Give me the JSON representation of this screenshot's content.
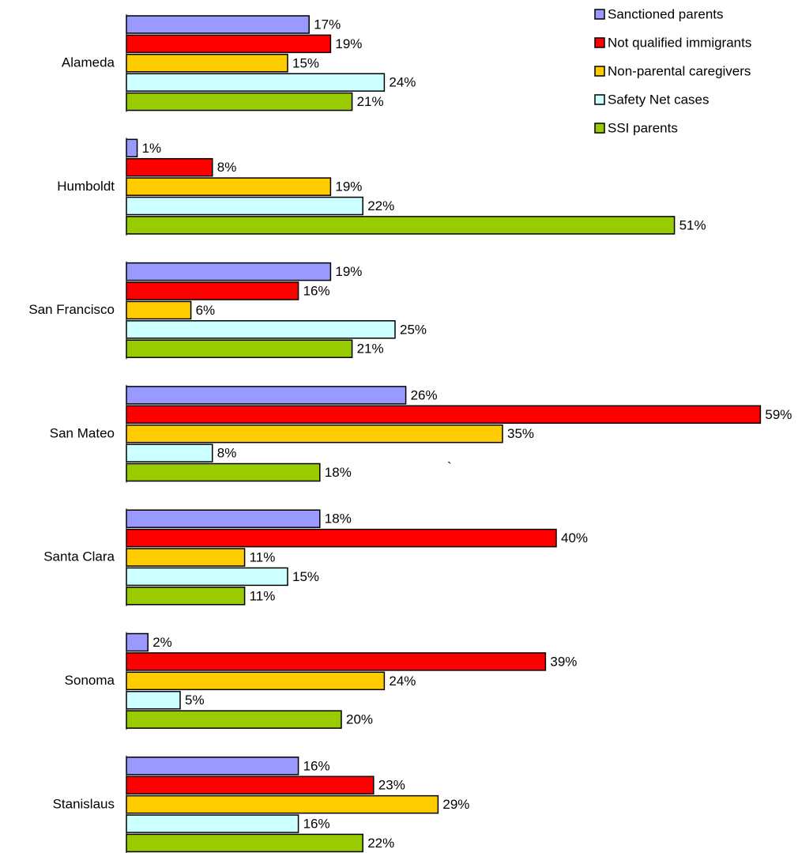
{
  "chart_data": {
    "type": "bar",
    "orientation": "horizontal",
    "categories": [
      "Alameda",
      "Humboldt",
      "San Francisco",
      "San Mateo",
      "Santa Clara",
      "Sonoma",
      "Stanislaus"
    ],
    "series": [
      {
        "name": "Sanctioned parents",
        "color": "#9999ff",
        "values": [
          17,
          1,
          19,
          26,
          18,
          2,
          16
        ],
        "value_labels": [
          "17%",
          "1%",
          "19%",
          "26%",
          "18%",
          "2%",
          "16%"
        ]
      },
      {
        "name": "Not qualified immigrants",
        "color": "#ff0000",
        "values": [
          19,
          8,
          16,
          59,
          40,
          39,
          23
        ],
        "value_labels": [
          "19%",
          "8%",
          "16%",
          "59%",
          "40%",
          "39%",
          "23%"
        ]
      },
      {
        "name": "Non-parental caregivers",
        "color": "#ffcc00",
        "values": [
          15,
          19,
          6,
          35,
          11,
          24,
          29
        ],
        "value_labels": [
          "15%",
          "19%",
          "6%",
          "35%",
          "11%",
          "24%",
          "29%"
        ]
      },
      {
        "name": "Safety Net cases",
        "color": "#ccffff",
        "values": [
          24,
          22,
          25,
          8,
          15,
          5,
          16
        ],
        "value_labels": [
          "24%",
          "22%",
          "25%",
          "8%",
          "15%",
          "5%",
          "16%"
        ]
      },
      {
        "name": "SSI parents",
        "color": "#99cc00",
        "values": [
          21,
          51,
          21,
          18,
          11,
          20,
          22
        ],
        "value_labels": [
          "21%",
          "51%",
          "21%",
          "18%",
          "11%",
          "20%",
          "22%"
        ]
      }
    ],
    "annotation": "`",
    "legend": "top-right"
  }
}
